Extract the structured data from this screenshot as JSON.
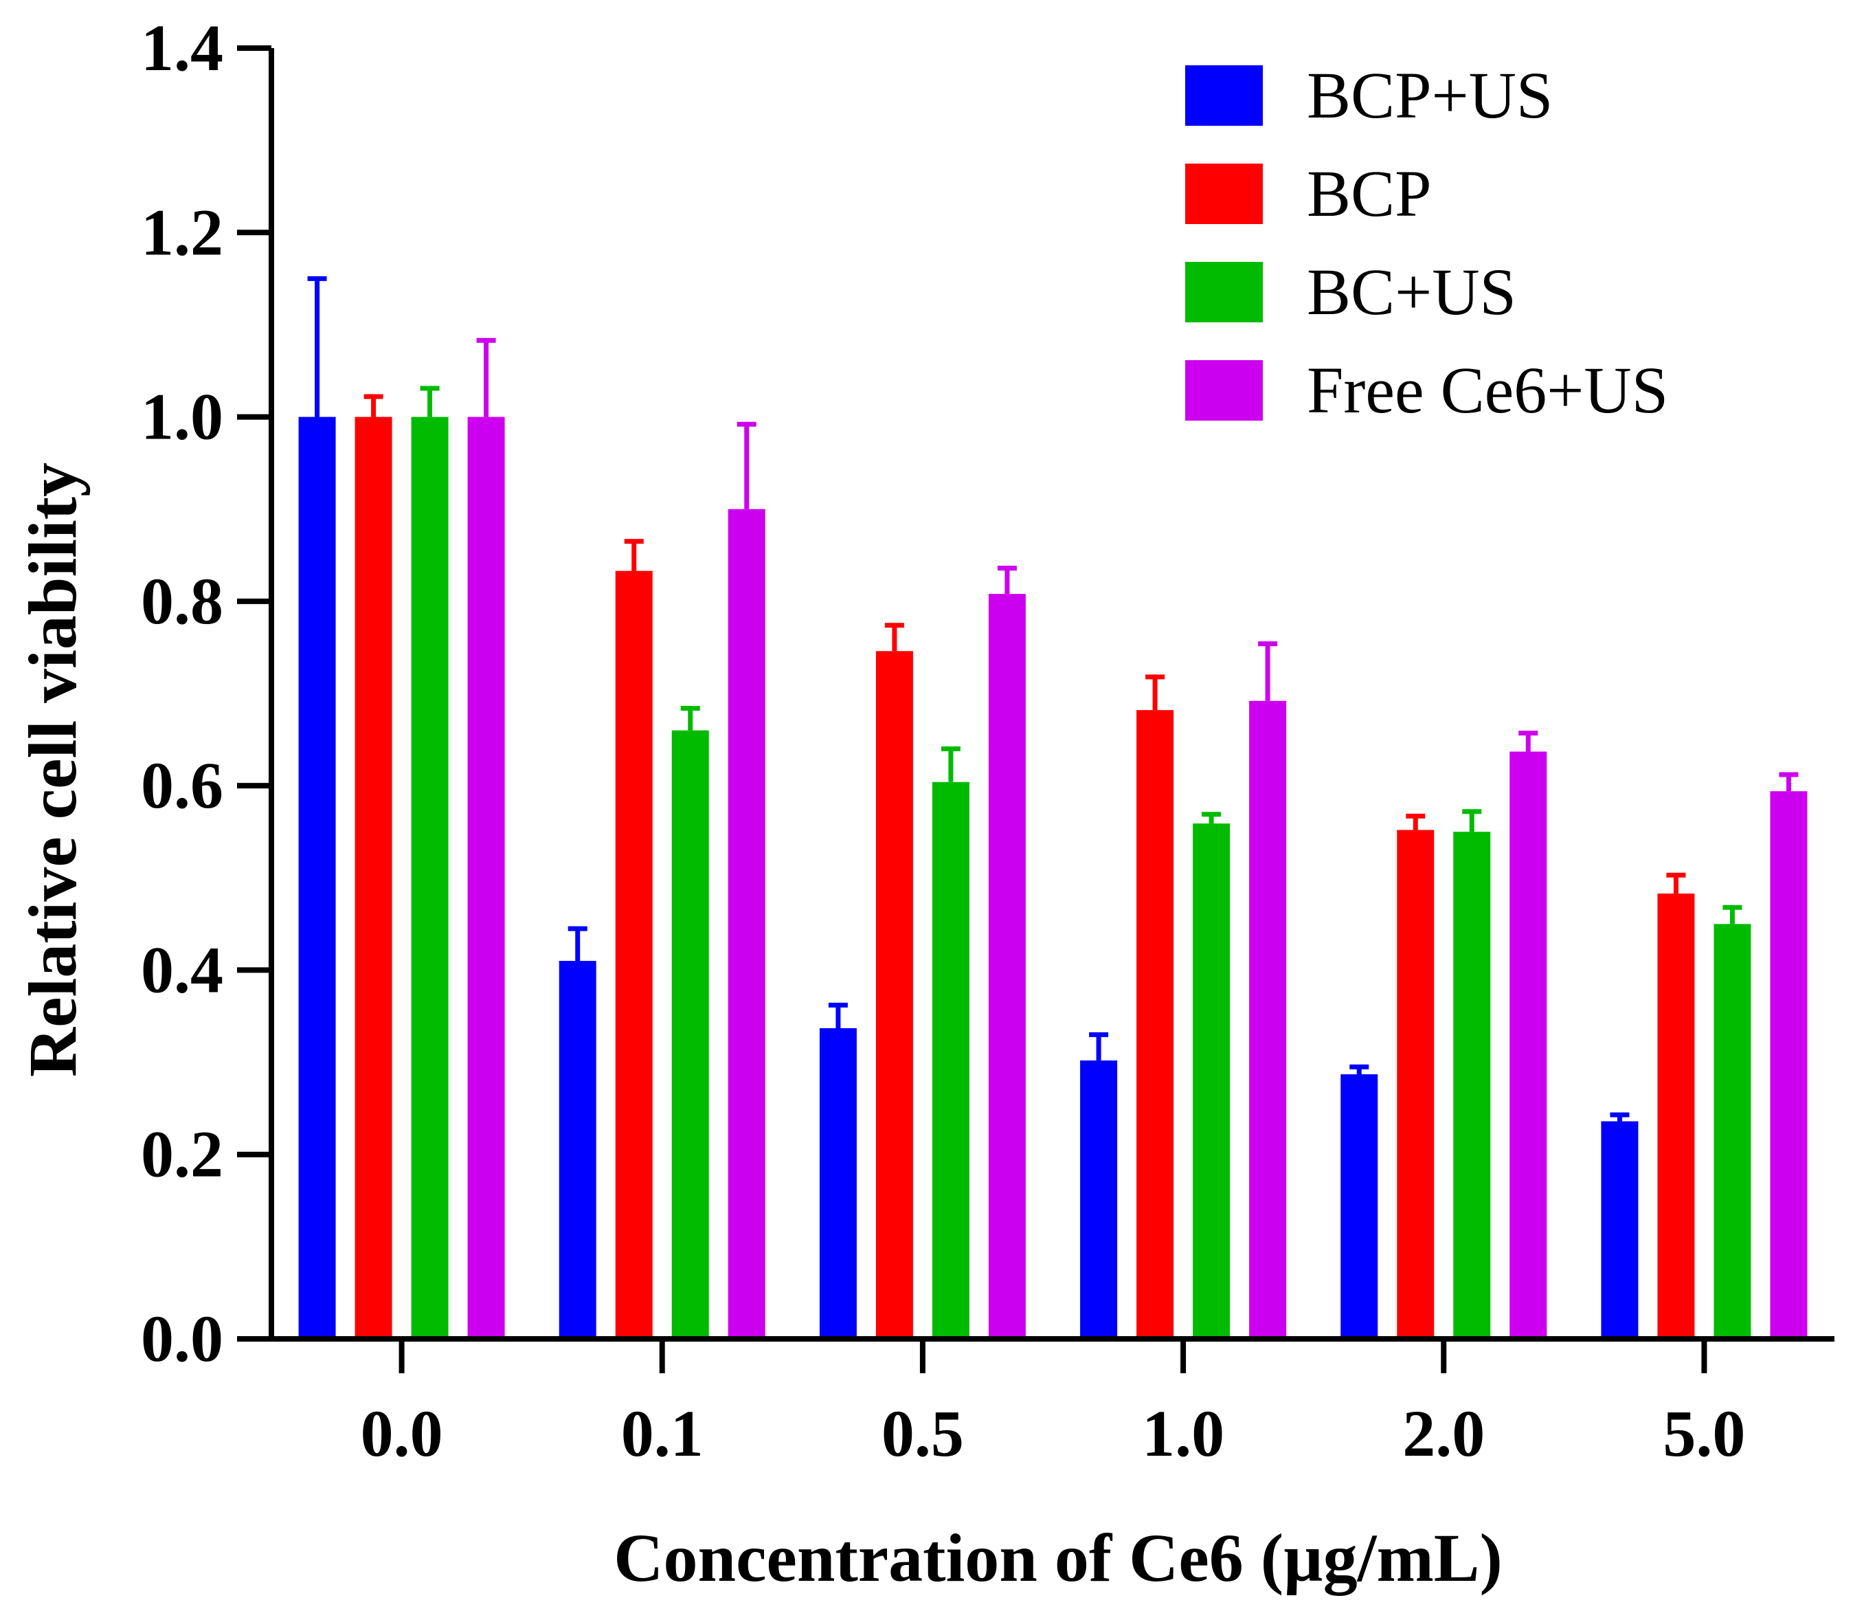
{
  "chart_data": {
    "type": "bar",
    "title": "",
    "xlabel": "Concentration of Ce6 (µg/mL)",
    "ylabel": "Relative cell viability",
    "ylim": [
      0,
      1.4
    ],
    "yticks": [
      "0.0",
      "0.2",
      "0.4",
      "0.6",
      "0.8",
      "1.0",
      "1.2",
      "1.4"
    ],
    "categories": [
      "0.0",
      "0.1",
      "0.5",
      "1.0",
      "2.0",
      "5.0"
    ],
    "legend_position": "top-right",
    "series": [
      {
        "name": "BCP+US",
        "color": "#0000ff",
        "values": [
          1.0,
          0.41,
          0.337,
          0.302,
          0.287,
          0.236
        ],
        "errors": [
          0.15,
          0.035,
          0.025,
          0.028,
          0.008,
          0.007
        ]
      },
      {
        "name": "BCP",
        "color": "#ff0000",
        "values": [
          1.0,
          0.833,
          0.746,
          0.682,
          0.552,
          0.483
        ],
        "errors": [
          0.022,
          0.032,
          0.028,
          0.036,
          0.015,
          0.02
        ]
      },
      {
        "name": "BC+US",
        "color": "#00bb00",
        "values": [
          1.0,
          0.66,
          0.604,
          0.559,
          0.55,
          0.45
        ],
        "errors": [
          0.031,
          0.024,
          0.036,
          0.01,
          0.022,
          0.018
        ]
      },
      {
        "name": "Free Ce6+US",
        "color": "#cc00ee",
        "values": [
          1.0,
          0.9,
          0.808,
          0.692,
          0.637,
          0.594
        ],
        "errors": [
          0.083,
          0.092,
          0.028,
          0.062,
          0.02,
          0.018
        ]
      }
    ]
  }
}
